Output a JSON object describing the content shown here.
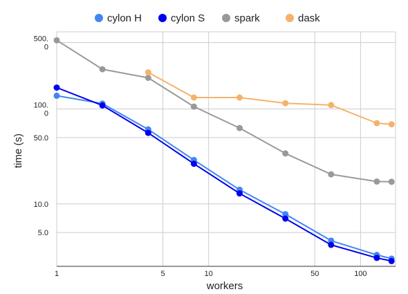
{
  "chart_data": {
    "type": "line",
    "xlabel": "workers",
    "ylabel": "time (s)",
    "xscale": "log",
    "yscale": "log",
    "xlim": [
      1,
      170
    ],
    "ylim": [
      2.2,
      650
    ],
    "grid": true,
    "legend_position": "top-center",
    "x_ticks": [
      {
        "value": 1,
        "label": "1"
      },
      {
        "value": 5,
        "label": "5"
      },
      {
        "value": 10,
        "label": "10"
      },
      {
        "value": 50,
        "label": "50"
      },
      {
        "value": 100,
        "label": "100"
      }
    ],
    "y_ticks": [
      {
        "value": 5,
        "label": "5.0"
      },
      {
        "value": 10,
        "label": "10.0"
      },
      {
        "value": 50,
        "label": "50.0"
      },
      {
        "value": 100,
        "label": "100.0"
      },
      {
        "value": 500,
        "label": "500.0"
      }
    ],
    "series": [
      {
        "name": "cylon H",
        "color": "#4285f4",
        "x": [
          1,
          2,
          4,
          8,
          16,
          32,
          64,
          128,
          160
        ],
        "y": [
          138,
          114,
          61,
          29,
          14.1,
          7.8,
          4.1,
          2.9,
          2.65
        ]
      },
      {
        "name": "cylon S",
        "color": "#0000ee",
        "x": [
          1,
          2,
          4,
          8,
          16,
          32,
          64,
          128,
          160
        ],
        "y": [
          168,
          109,
          56,
          26.5,
          12.9,
          7.0,
          3.7,
          2.7,
          2.5
        ]
      },
      {
        "name": "spark",
        "color": "#999999",
        "x": [
          1,
          2,
          4,
          8,
          16,
          32,
          64,
          128,
          160
        ],
        "y": [
          530,
          262,
          213,
          106,
          63,
          34,
          20.5,
          17.2,
          17.1
        ]
      },
      {
        "name": "dask",
        "color": "#f6b26b",
        "x": [
          4,
          8,
          16,
          32,
          64,
          128,
          160
        ],
        "y": [
          243,
          132,
          132,
          115,
          110,
          71,
          69
        ]
      }
    ]
  }
}
